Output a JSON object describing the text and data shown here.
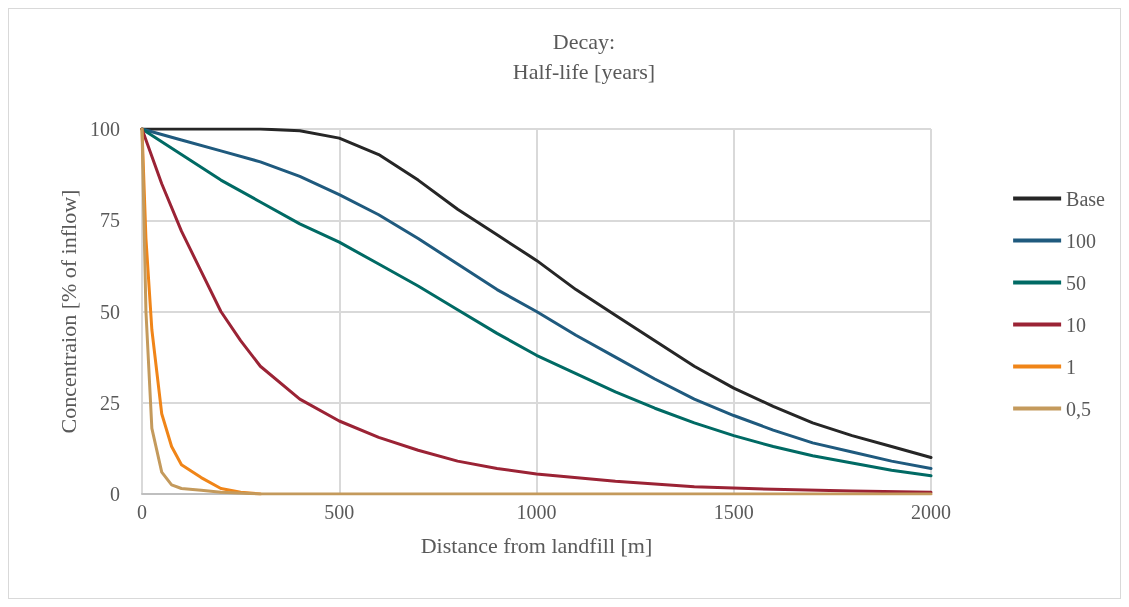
{
  "chart_data": {
    "type": "line",
    "title": "Decay:\nHalf-life [years]",
    "xlabel": "Distance from landfill [m]",
    "ylabel": "Concentraion [% of inflow]",
    "xlim": [
      0,
      2000
    ],
    "xticks": [
      0,
      500,
      1000,
      1500,
      2000
    ],
    "ylim": [
      0,
      100
    ],
    "yticks": [
      0,
      25,
      50,
      75,
      100
    ],
    "grid": true,
    "legend": "right",
    "marker": "none",
    "line_style": "solid",
    "series": [
      {
        "name": "Base",
        "color": "#262626",
        "x": [
          0,
          100,
          200,
          300,
          400,
          500,
          600,
          700,
          800,
          900,
          1000,
          1100,
          1200,
          1300,
          1400,
          1500,
          1600,
          1700,
          1800,
          1900,
          2000
        ],
        "values": [
          100,
          100,
          100,
          100,
          99.5,
          97.5,
          93,
          86,
          78,
          71,
          64,
          56,
          49,
          42,
          35,
          29,
          24,
          19.5,
          16,
          13,
          10
        ]
      },
      {
        "name": "100",
        "color": "#1f5a7e",
        "x": [
          0,
          100,
          200,
          300,
          400,
          500,
          600,
          700,
          800,
          900,
          1000,
          1100,
          1200,
          1300,
          1400,
          1500,
          1600,
          1700,
          1800,
          1900,
          2000
        ],
        "values": [
          100,
          97,
          94,
          91,
          87,
          82,
          76.5,
          70,
          63,
          56,
          50,
          43.5,
          37.5,
          31.5,
          26,
          21.5,
          17.5,
          14,
          11.5,
          9,
          7
        ]
      },
      {
        "name": "50",
        "color": "#006a64",
        "x": [
          0,
          100,
          200,
          300,
          400,
          500,
          600,
          700,
          800,
          900,
          1000,
          1100,
          1200,
          1300,
          1400,
          1500,
          1600,
          1700,
          1800,
          1900,
          2000
        ],
        "values": [
          100,
          93,
          86,
          80,
          74,
          69,
          63,
          57,
          50.5,
          44,
          38,
          33,
          28,
          23.5,
          19.5,
          16,
          13,
          10.5,
          8.5,
          6.5,
          5
        ]
      },
      {
        "name": "10",
        "color": "#9b2335",
        "x": [
          0,
          50,
          100,
          150,
          200,
          250,
          300,
          400,
          500,
          600,
          700,
          800,
          900,
          1000,
          1200,
          1400,
          1600,
          1800,
          2000
        ],
        "values": [
          100,
          85,
          72,
          61,
          50,
          42,
          35,
          26,
          20,
          15.5,
          12,
          9,
          7,
          5.5,
          3.5,
          2,
          1.3,
          0.8,
          0.5
        ]
      },
      {
        "name": "1",
        "color": "#f08518",
        "x": [
          0,
          10,
          25,
          50,
          75,
          100,
          150,
          200,
          250,
          300
        ],
        "values": [
          100,
          70,
          45,
          22,
          13,
          8,
          4.5,
          1.5,
          0.5,
          0
        ]
      },
      {
        "name": "0,5",
        "color": "#c49a5c",
        "x": [
          0,
          10,
          25,
          50,
          75,
          100,
          150,
          200,
          300,
          2000
        ],
        "values": [
          100,
          50,
          18,
          6,
          2.5,
          1.5,
          1,
          0.5,
          0,
          0
        ]
      }
    ]
  }
}
